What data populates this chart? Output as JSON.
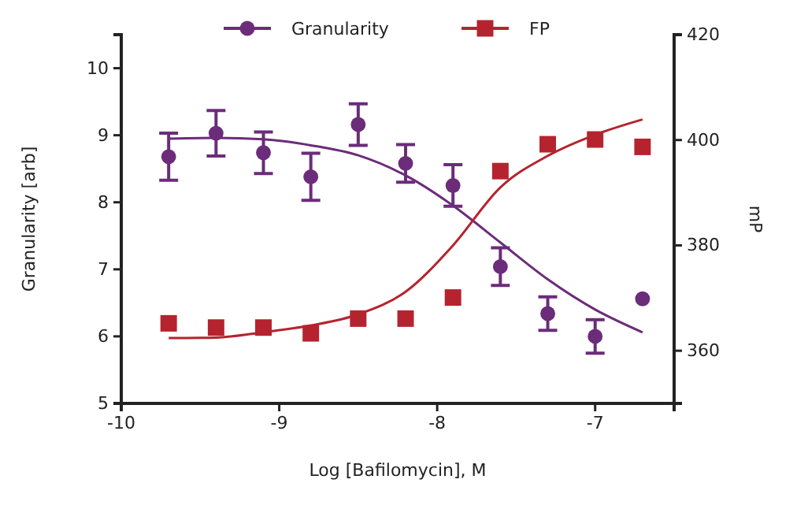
{
  "chart_data": {
    "type": "scatter",
    "xlabel": "Log [Bafilomycin], M",
    "ylabel": "Granularity [arb]",
    "y2label": "mP",
    "xlim": [
      -10,
      -6.5
    ],
    "xticks": [
      -10,
      -9,
      -8,
      -7
    ],
    "ylim": [
      5,
      10.5
    ],
    "yticks": [
      5,
      6,
      7,
      8,
      9,
      10
    ],
    "y2lim": [
      350,
      420
    ],
    "y2ticks": [
      360,
      380,
      400,
      420
    ],
    "legend": "top",
    "grid": false,
    "series": [
      {
        "name": "Granularity",
        "color": "#6b2c7a",
        "marker": "circle",
        "x": [
          -9.7,
          -9.4,
          -9.1,
          -8.8,
          -8.5,
          -8.2,
          -7.9,
          -7.6,
          -7.3,
          -7.0,
          -6.7
        ],
        "values": [
          8.68,
          9.03,
          8.74,
          8.38,
          9.16,
          8.58,
          8.25,
          7.04,
          6.34,
          6.0,
          6.56
        ],
        "errors": [
          0.35,
          0.34,
          0.31,
          0.35,
          0.31,
          0.28,
          0.31,
          0.28,
          0.25,
          0.25,
          null
        ]
      },
      {
        "type": "line",
        "color": "#6b2c7a",
        "marker": "none",
        "x": [
          -9.7,
          -9.4,
          -9.1,
          -8.8,
          -8.5,
          -8.2,
          -7.9,
          -7.6,
          -7.3,
          -7.0,
          -6.7
        ],
        "values": [
          8.95,
          8.96,
          8.94,
          8.85,
          8.7,
          8.4,
          7.95,
          7.4,
          6.85,
          6.4,
          6.06
        ]
      },
      {
        "name": "FP",
        "color": "#b5242e",
        "marker": "square",
        "axis": "y2",
        "x": [
          -9.7,
          -9.4,
          -9.1,
          -8.8,
          -8.5,
          -8.2,
          -7.9,
          -7.6,
          -7.3,
          -7.0,
          -6.7
        ],
        "values": [
          365.2,
          364.4,
          364.4,
          363.3,
          366.1,
          366.1,
          370.1,
          394.1,
          399.2,
          400.1,
          398.7
        ]
      },
      {
        "type": "line",
        "color": "#b5242e",
        "marker": "none",
        "axis": "y2",
        "x": [
          -9.7,
          -9.4,
          -9.1,
          -8.8,
          -8.5,
          -8.2,
          -7.9,
          -7.6,
          -7.3,
          -7.0,
          -6.7
        ],
        "values": [
          362.4,
          362.5,
          363.5,
          364.8,
          366.9,
          371.2,
          380,
          391,
          397,
          401,
          403.9
        ]
      }
    ]
  }
}
